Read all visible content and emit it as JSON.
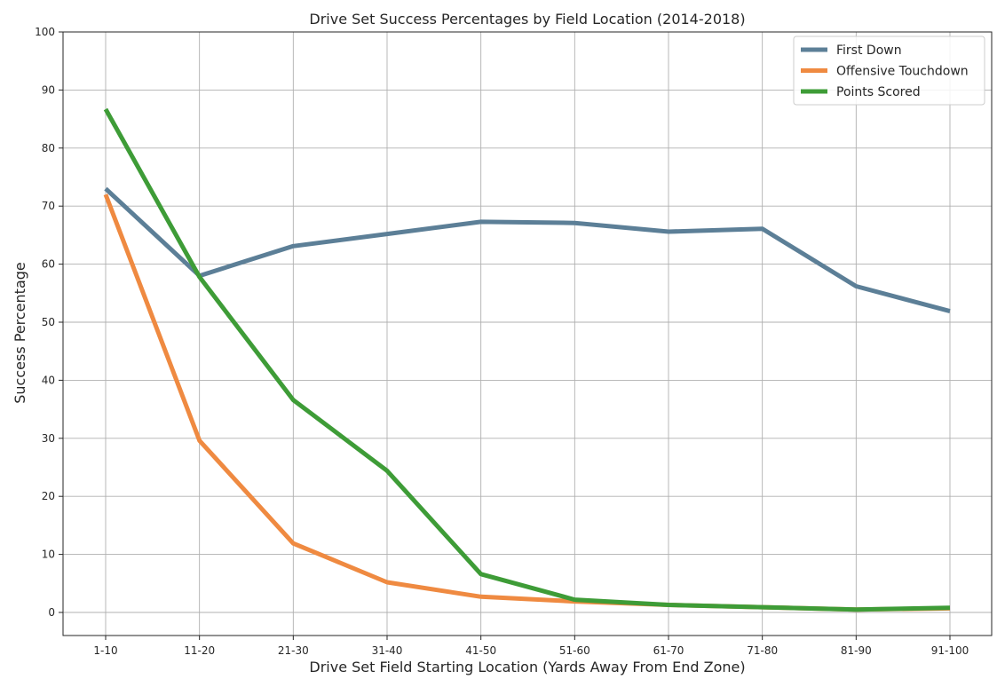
{
  "chart_data": {
    "type": "line",
    "title": "Drive Set Success Percentages by Field Location (2014-2018)",
    "xlabel": "Drive Set Field Starting Location (Yards Away From End Zone)",
    "ylabel": "Success Percentage",
    "categories": [
      "1-10",
      "11-20",
      "21-30",
      "31-40",
      "41-50",
      "51-60",
      "61-70",
      "71-80",
      "81-90",
      "91-100"
    ],
    "ylim": [
      -4,
      100
    ],
    "yticks": [
      0,
      10,
      20,
      30,
      40,
      50,
      60,
      70,
      80,
      90,
      100
    ],
    "grid": true,
    "legend_position": "top-right",
    "series": [
      {
        "name": "First Down",
        "color": "#5c7f97",
        "values": [
          73.0,
          58.0,
          63.1,
          65.2,
          67.3,
          67.1,
          65.6,
          66.1,
          56.2,
          51.9
        ]
      },
      {
        "name": "Offensive Touchdown",
        "color": "#ef8a41",
        "values": [
          72.0,
          29.6,
          11.9,
          5.2,
          2.7,
          1.9,
          1.3,
          0.9,
          0.5,
          0.7
        ]
      },
      {
        "name": "Points Scored",
        "color": "#3e9c37",
        "values": [
          86.7,
          57.8,
          36.6,
          24.4,
          6.6,
          2.2,
          1.3,
          0.9,
          0.5,
          0.8
        ]
      }
    ]
  }
}
